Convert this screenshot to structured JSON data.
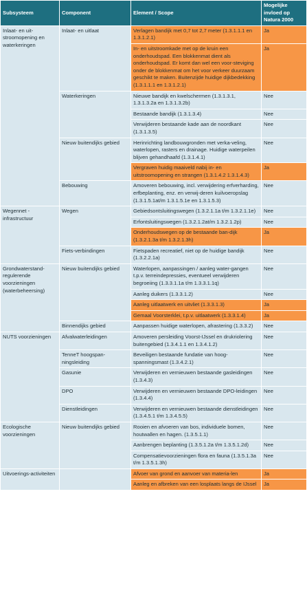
{
  "headers": {
    "subsysteem": "Subsysteem",
    "component": "Component",
    "element": "Element / Scope",
    "natura": "Mogelijke invloed op Natura 2000"
  },
  "colors": {
    "header": "#1e6f80",
    "cell": "#d9e7ee",
    "highlight": "#f79646"
  },
  "groups": [
    {
      "subsysteem": "Inlaat- en uit-stroomopening en waterkeringen",
      "components": [
        {
          "name": "Inlaat- en uitlaat",
          "elements": [
            {
              "text": "Verlagen bandijk met 0,7 tot 2,7 meter (1.3.1.1.1 en 1.3.1.2.1)",
              "natura": "Ja",
              "highlight": true
            },
            {
              "text": "In- en uitstroomkade met op de kruin een onderhoudspad. Een blokkenmat dient als onderhoudspad. Er komt dan wel een voor-steviging onder de blokkenmat om het voor verkeer duurzaam geschikt te maken. Buitenzijde huidige dijkbedekking (1.3.1.1.1 en 1.3.1.2.1)",
              "natura": "Ja",
              "highlight": true
            }
          ]
        },
        {
          "name": "Waterkeringen",
          "elements": [
            {
              "text": "Nieuwe bandijk en kwelschermen (1.3.1.3.1, 1.3.1.3.2a en 1.3.1.3.2b)",
              "natura": "Nee",
              "highlight": false
            },
            {
              "text": "Bestaande bandijk (1.3.1.3.4)",
              "natura": "Nee",
              "highlight": false
            },
            {
              "text": "Verwijderen bestaande kade aan de noordkant (1.3.1.3.5)",
              "natura": "Nee",
              "highlight": false
            }
          ]
        },
        {
          "name": "Nieuw buitendijks gebied",
          "elements": [
            {
              "text": "Herinrichting landbouwgronden met verka-veling, waterlopen, rasters en drainage. Huidige waterpeilen blijven gehandhaafd (1.3.1.4.1)",
              "natura": "Nee",
              "highlight": false
            },
            {
              "text": "Vergraven huidig maaiveld nabij in- en uitstroomopening en strangen (1.3.1.4.2 1.3.1.4.3)",
              "natura": "Ja",
              "highlight": true
            }
          ]
        },
        {
          "name": "Bebouwing",
          "elements": [
            {
              "text": "Amoveren bebouwing, incl. verwijdering erfverharding, erfbeplanting, enz. en verwij-deren kuilvoeropslag (1.3.1.5.1at/m 1.3.1.5.1e en 1.3.1.5.3)",
              "natura": "Nee",
              "highlight": false
            }
          ]
        }
      ]
    },
    {
      "subsysteem": "Wegennet - infrastructuur",
      "components": [
        {
          "name": "Wegen",
          "elements": [
            {
              "text": "Gebiedsontsluitingswegen (1.3.2.1.1a t/m 1.3.2.1.1e)",
              "natura": "Nee",
              "highlight": false
            },
            {
              "text": "Erfontsluitingswegen (1.3.2.1.2at/m 1.3.2.1.2p)",
              "natura": "Nee",
              "highlight": false
            },
            {
              "text": "Onderhoudswegen op de bestaande ban-dijk (1.3.2.1.3a t/m 1.3.2.1.3h)",
              "natura": "Ja",
              "highlight": true
            }
          ]
        },
        {
          "name": "Fiets-verbindingen",
          "elements": [
            {
              "text": "Fietspaden recreatief, niet op de huidige bandijk (1.3.2.2.1a)",
              "natura": "Nee",
              "highlight": false
            }
          ]
        }
      ]
    },
    {
      "subsysteem": "Grondwaterstand-regulerende voorzieningen (waterbeheersing)",
      "components": [
        {
          "name": "Nieuw buitendijks gebied",
          "elements": [
            {
              "text": "Waterlopen, aanpassingen / aanleg water-gangen t.p.v. terreindepressies, eventueel verwijderen begroeiing (1.3.3.1.1a t/m 1.3.3.1.1q)",
              "natura": "Nee",
              "highlight": false
            },
            {
              "text": "Aanleg duikers (1.3.3.1.2)",
              "natura": "Nee",
              "highlight": false
            },
            {
              "text": "Aanleg uitlaatwerk en uitvliet (1.3.3.1.3)",
              "natura": "Ja",
              "highlight": true
            },
            {
              "text": "Gemaal Voorsterklei, t.p.v. uitlaatwerk (1.3.3.1.4)",
              "natura": "Ja",
              "highlight": true
            }
          ]
        },
        {
          "name": "Binnendijks gebied",
          "elements": [
            {
              "text": "Aanpassen huidige waterlopen, afrastering (1.3.3.2)",
              "natura": "Nee",
              "highlight": false
            }
          ]
        }
      ]
    },
    {
      "subsysteem": "NUTS voorzieningen",
      "components": [
        {
          "name": "Afvalwaterleidingen",
          "elements": [
            {
              "text": "Amoveren persleiding Voorst-IJssel en drukriolering buitengebied (1.3.4.1.1 en 1.3.4.1.2)",
              "natura": "Nee",
              "highlight": false
            }
          ]
        },
        {
          "name": "TenneT hoogspan-ningsleiding",
          "elements": [
            {
              "text": "Beveiligen bestaande fundatie van hoog-spanningsmast (1.3.4.2.1)",
              "natura": "Nee",
              "highlight": false
            }
          ]
        },
        {
          "name": "Gasunie",
          "elements": [
            {
              "text": "Verwijderen en vernieuwen bestaande gasleidingen (1.3.4.3)",
              "natura": "Nee",
              "highlight": false
            }
          ]
        },
        {
          "name": "DPO",
          "elements": [
            {
              "text": "Verwijderen en vernieuwen bestaande DPO-leidingen (1.3.4.4)",
              "natura": "Nee",
              "highlight": false
            }
          ]
        },
        {
          "name": "Dienstleidingen",
          "elements": [
            {
              "text": "Verwijderen en vernieuwen bestaande dienstleidingen (1.3.4.5.1 t/m 1.3.4.5.5)",
              "natura": "Nee",
              "highlight": false
            }
          ]
        }
      ]
    },
    {
      "subsysteem": "Ecologische voorzieningen",
      "components": [
        {
          "name": "Nieuw buitendijks gebied",
          "elements": [
            {
              "text": "Rooien en afvoeren van bos, individuele bomen, houtwallen en hagen. (1.3.5.1.1)",
              "natura": "Nee",
              "highlight": false
            },
            {
              "text": "Aanbrengen beplanting (1.3.5.1.2a t/m 1.3.5.1.2d)",
              "natura": "Nee",
              "highlight": false
            },
            {
              "text": "Compensatievoorzieningen flora en fauna (1.3.5.1.3a t/m 1.3.5.1.3h)",
              "natura": "Nee",
              "highlight": false
            }
          ]
        }
      ]
    },
    {
      "subsysteem": "Uitvoerings-activiteiten",
      "components": [
        {
          "name": "",
          "elements": [
            {
              "text": "Afvoer van grond en aanvoer van materia-len",
              "natura": "Ja",
              "highlight": true
            },
            {
              "text": "Aanleg en afbreken van een losplaats langs de IJssel",
              "natura": "Ja",
              "highlight": true
            }
          ]
        }
      ]
    }
  ]
}
